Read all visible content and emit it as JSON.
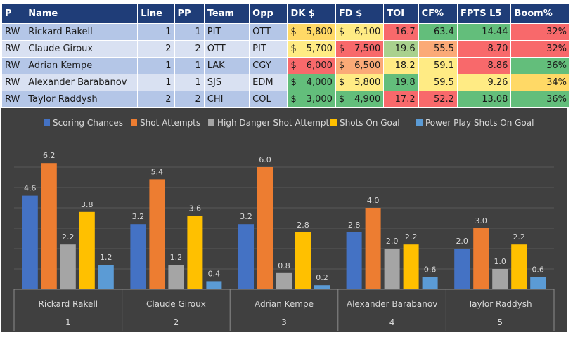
{
  "table": {
    "headers": [
      "P",
      "Name",
      "Line",
      "PP",
      "Team",
      "Opp",
      "DK $",
      "FD $",
      "TOI",
      "CF%",
      "FPTS L5",
      "Boom%"
    ],
    "rows": [
      [
        "RW",
        "Rickard Rakell",
        "1",
        "1",
        "PIT",
        "OTT",
        "$",
        "5,800",
        "$",
        "6,100",
        "16.7",
        "63.4",
        "14.44",
        "32%"
      ],
      [
        "RW",
        "Claude Giroux",
        "2",
        "2",
        "OTT",
        "PIT",
        "$",
        "5,700",
        "$",
        "7,500",
        "19.6",
        "55.5",
        "8.70",
        "32%"
      ],
      [
        "RW",
        "Adrian Kempe",
        "1",
        "1",
        "LAK",
        "CGY",
        "$",
        "6,000",
        "$",
        "6,500",
        "18.2",
        "59.1",
        "8.86",
        "36%"
      ],
      [
        "RW",
        "Alexander Barabanov",
        "1",
        "1",
        "SJS",
        "EDM",
        "$",
        "4,000",
        "$",
        "5,800",
        "19.8",
        "59.5",
        "9.26",
        "34%"
      ],
      [
        "RW",
        "Taylor Raddysh",
        "2",
        "2",
        "CHI",
        "COL",
        "$",
        "3,000",
        "$",
        "4,900",
        "17.2",
        "52.2",
        "13.08",
        "36%"
      ]
    ],
    "cell_colors": [
      [
        "#ffd966",
        "#ffeb84",
        "#f8696b",
        "#63be7b",
        "#63be7b",
        "#f8696b"
      ],
      [
        "#ffeb84",
        "#f8696b",
        "#a9d18e",
        "#fbaa77",
        "#f8696b",
        "#f8696b"
      ],
      [
        "#f8696b",
        "#fbaa77",
        "#ffeb84",
        "#ffeb84",
        "#f8696b",
        "#63be7b"
      ],
      [
        "#63be7b",
        "#ffeb84",
        "#63be7b",
        "#ffeb84",
        "#ffeb84",
        "#ffd966"
      ],
      [
        "#63be7b",
        "#63be7b",
        "#f8696b",
        "#f8696b",
        "#63be7b",
        "#63be7b"
      ]
    ]
  },
  "chart_data": {
    "type": "bar",
    "categories": [
      "Rickard Rakell",
      "Claude Giroux",
      "Adrian Kempe",
      "Alexander Barabanov",
      "Taylor Raddysh"
    ],
    "category_index": [
      "1",
      "2",
      "3",
      "4",
      "5"
    ],
    "series": [
      {
        "name": "Scoring Chances",
        "values": [
          4.6,
          3.2,
          3.2,
          2.8,
          2.0
        ],
        "color": "#4472c4"
      },
      {
        "name": "Shot Attempts",
        "values": [
          6.2,
          5.4,
          6.0,
          4.0,
          3.0
        ],
        "color": "#ed7d31"
      },
      {
        "name": "High Danger Shot Attempts",
        "values": [
          2.2,
          1.2,
          0.8,
          2.0,
          1.0
        ],
        "color": "#a5a5a5"
      },
      {
        "name": "Shots On Goal",
        "values": [
          3.8,
          3.6,
          2.8,
          2.2,
          2.2
        ],
        "color": "#ffc000"
      },
      {
        "name": "Power Play Shots On Goal",
        "values": [
          1.2,
          0.4,
          0.2,
          0.6,
          0.6
        ],
        "color": "#5b9bd5"
      }
    ],
    "value_labels": [
      [
        "4.6",
        "3.2",
        "3.2",
        "2.8",
        "2.0"
      ],
      [
        "6.2",
        "5.4",
        "6.0",
        "4.0",
        "3.0"
      ],
      [
        "2.2",
        "1.2",
        "0.8",
        "2.0",
        "1.0"
      ],
      [
        "3.8",
        "3.6",
        "2.8",
        "2.2",
        "2.2"
      ],
      [
        "1.2",
        "0.4",
        "0.2",
        "0.6",
        "0.6"
      ]
    ],
    "ylim": [
      0,
      7
    ],
    "grid": true,
    "legend": "top",
    "background": "#404040"
  }
}
